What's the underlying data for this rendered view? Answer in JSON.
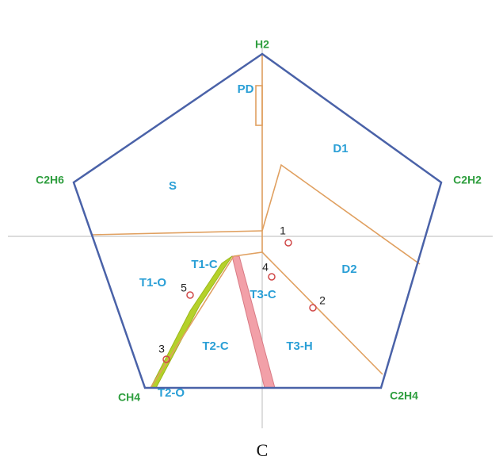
{
  "vertices": [
    "H2",
    "C2H2",
    "C2H4",
    "CH4",
    "C2H6"
  ],
  "zones": [
    "PD",
    "D1",
    "S",
    "D2",
    "T1-C",
    "T1-O",
    "T3-C",
    "T2-C",
    "T3-H",
    "T2-O"
  ],
  "points": [
    1,
    2,
    3,
    4,
    5
  ],
  "caption": "C"
}
